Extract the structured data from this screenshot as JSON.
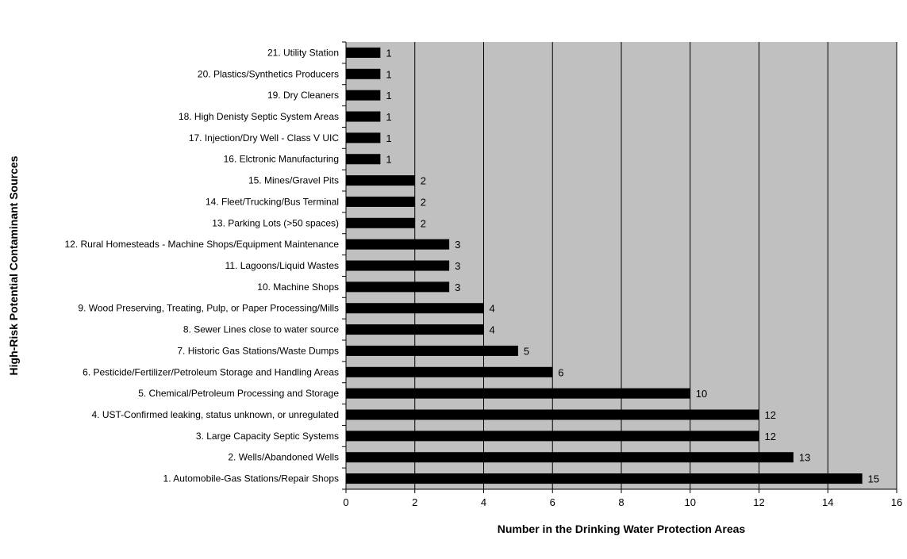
{
  "chart_data": {
    "type": "bar",
    "orientation": "horizontal",
    "title": "",
    "xlabel": "Number in the Drinking Water Protection Areas",
    "ylabel": "High-Risk Potential Contaminant Sources",
    "xlim": [
      0,
      16
    ],
    "x_ticks": [
      "0",
      "2",
      "4",
      "6",
      "8",
      "10",
      "12",
      "14",
      "16"
    ],
    "grid": "vertical",
    "legend": "none",
    "categories": [
      "1. Automobile-Gas Stations/Repair Shops",
      "2. Wells/Abandoned Wells",
      "3. Large Capacity Septic Systems",
      "4. UST-Confirmed leaking, status unknown, or unregulated",
      "5. Chemical/Petroleum Processing and Storage",
      "6. Pesticide/Fertilizer/Petroleum Storage and Handling Areas",
      "7. Historic Gas Stations/Waste Dumps",
      "8. Sewer Lines close to water source",
      "9. Wood Preserving, Treating, Pulp, or Paper Processing/Mills",
      "10. Machine Shops",
      "11. Lagoons/Liquid Wastes",
      "12. Rural Homesteads - Machine Shops/Equipment Maintenance",
      "13. Parking Lots (>50 spaces)",
      "14. Fleet/Trucking/Bus Terminal",
      "15. Mines/Gravel Pits",
      "16. Elctronic Manufacturing",
      "17. Injection/Dry Well - Class V UIC",
      "18. High Denisty Septic System Areas",
      "19. Dry Cleaners",
      "20. Plastics/Synthetics Producers",
      "21. Utility Station"
    ],
    "values": [
      15,
      13,
      12,
      12,
      10,
      6,
      5,
      4,
      4,
      3,
      3,
      3,
      2,
      2,
      2,
      1,
      1,
      1,
      1,
      1,
      1
    ],
    "colors": {
      "bar": "#000000",
      "plot_background": "#c0c0c0",
      "gridline": "#000000"
    }
  }
}
